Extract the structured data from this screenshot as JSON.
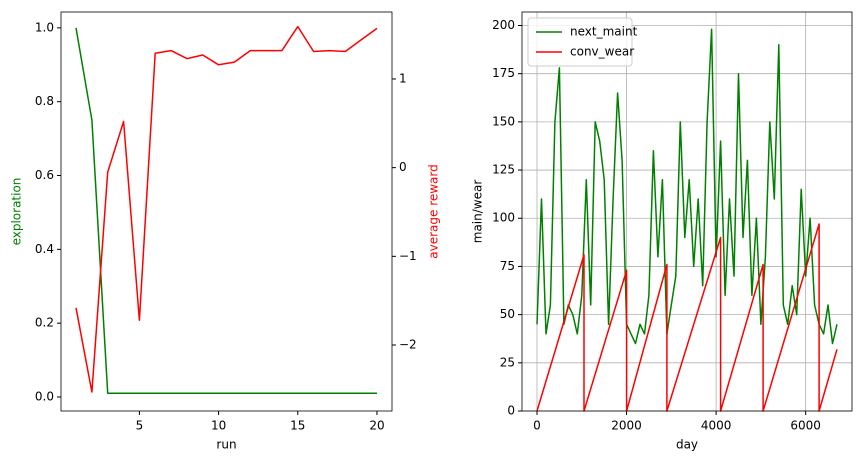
{
  "chart_data": [
    {
      "type": "line",
      "xlabel": "run",
      "ylabel": "exploration",
      "ylabel_color": "green",
      "y2label": "average reward",
      "y2label_color": "red",
      "x": [
        1,
        2,
        3,
        4,
        5,
        6,
        7,
        8,
        9,
        10,
        11,
        12,
        13,
        14,
        15,
        16,
        17,
        18,
        19,
        20
      ],
      "series": [
        {
          "name": "exploration",
          "color": "green",
          "values": [
            1.0,
            0.75,
            0.01,
            0.01,
            0.01,
            0.01,
            0.01,
            0.01,
            0.01,
            0.01,
            0.01,
            0.01,
            0.01,
            0.01,
            0.01,
            0.01,
            0.01,
            0.01,
            0.01,
            0.01
          ]
        },
        {
          "name": "average reward",
          "color": "red",
          "axis": "y2",
          "values": [
            -1.58,
            -2.53,
            -0.05,
            0.52,
            -1.72,
            1.29,
            1.32,
            1.23,
            1.27,
            1.16,
            1.19,
            1.32,
            1.32,
            1.32,
            1.59,
            1.31,
            1.32,
            1.31,
            1.44,
            1.57
          ]
        }
      ],
      "xlim": [
        0.05,
        20.95
      ],
      "xticks": [
        5,
        10,
        15,
        20
      ],
      "ylim": [
        -0.038,
        1.043
      ],
      "yticks": [
        {
          "value": 0,
          "label": "0.0"
        },
        {
          "value": 0.2,
          "label": "0.2"
        },
        {
          "value": 0.4,
          "label": "0.4"
        },
        {
          "value": 0.6,
          "label": "0.6"
        },
        {
          "value": 0.8,
          "label": "0.8"
        },
        {
          "value": 1,
          "label": "1.0"
        }
      ],
      "y2lim": [
        -2.744,
        1.755
      ],
      "y2ticks": [
        {
          "value": -2,
          "label": "−2"
        },
        {
          "value": -1,
          "label": "−1"
        },
        0,
        1
      ],
      "grid": false,
      "legend": false
    },
    {
      "type": "line",
      "xlabel": "day",
      "ylabel": "main/wear",
      "series": [
        {
          "name": "next_maint",
          "color": "green",
          "x": [
            0,
            100,
            200,
            300,
            400,
            500,
            600,
            700,
            800,
            900,
            1000,
            1100,
            1200,
            1300,
            1400,
            1500,
            1600,
            1700,
            1800,
            1900,
            2000,
            2100,
            2200,
            2300,
            2400,
            2500,
            2600,
            2700,
            2800,
            2900,
            3000,
            3100,
            3200,
            3300,
            3400,
            3500,
            3600,
            3700,
            3800,
            3900,
            4000,
            4100,
            4200,
            4300,
            4400,
            4500,
            4600,
            4700,
            4800,
            4900,
            5000,
            5100,
            5200,
            5300,
            5400,
            5500,
            5600,
            5700,
            5800,
            5900,
            6000,
            6100,
            6200,
            6300,
            6400,
            6500,
            6600,
            6700
          ],
          "values": [
            45,
            110,
            40,
            55,
            150,
            178,
            45,
            55,
            50,
            40,
            60,
            120,
            55,
            150,
            140,
            120,
            45,
            110,
            165,
            130,
            45,
            40,
            35,
            45,
            40,
            60,
            135,
            80,
            120,
            40,
            55,
            70,
            150,
            90,
            120,
            75,
            110,
            65,
            150,
            198,
            80,
            140,
            60,
            110,
            70,
            175,
            90,
            130,
            60,
            100,
            45,
            80,
            150,
            110,
            190,
            55,
            45,
            65,
            50,
            115,
            70,
            100,
            55,
            45,
            40,
            55,
            35,
            45
          ]
        },
        {
          "name": "conv_wear",
          "color": "red",
          "x": [
            0,
            1050,
            1050,
            2000,
            2000,
            2900,
            2900,
            4100,
            4100,
            5050,
            5050,
            6300,
            6300,
            6700
          ],
          "values": [
            0,
            81,
            0,
            73,
            0,
            76,
            0,
            90,
            0,
            76,
            0,
            97,
            0,
            32
          ]
        }
      ],
      "xlim": [
        -335,
        7035
      ],
      "xticks": [
        0,
        2000,
        4000,
        6000
      ],
      "ylim": [
        0,
        207
      ],
      "yticks": [
        0,
        25,
        50,
        75,
        100,
        125,
        150,
        175,
        200
      ],
      "grid": true,
      "legend": "upper left"
    }
  ]
}
